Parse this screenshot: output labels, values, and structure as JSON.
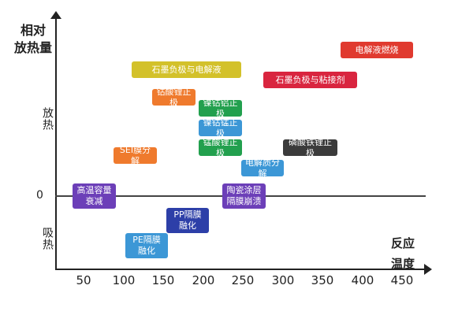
{
  "y_axis": {
    "title_line1": "相对",
    "title_line2": "放热量",
    "exo_label": "放热",
    "zero_label": "0",
    "endo_label": "吸热"
  },
  "x_axis": {
    "title_line1": "反应",
    "title_line2": "温度",
    "ticks": [
      "50",
      "100",
      "150",
      "200",
      "250",
      "300",
      "350",
      "400",
      "450"
    ]
  },
  "boxes": [
    {
      "key": "electrolyte-combustion",
      "line1": "电解液燃烧",
      "line2": "",
      "color": "#e03a2f"
    },
    {
      "key": "graphite-anode-electrolyte",
      "line1": "石墨负极与电解液",
      "line2": "",
      "color": "#d3c12a"
    },
    {
      "key": "graphite-anode-binder",
      "line1": "石墨负极与粘接剂",
      "line2": "",
      "color": "#d9253f"
    },
    {
      "key": "lco-cathode",
      "line1": "钴酸锂正极",
      "line2": "",
      "color": "#ef7a2d"
    },
    {
      "key": "nca-cathode",
      "line1": "镍钴铝正极",
      "line2": "",
      "color": "#22a04e"
    },
    {
      "key": "ncm-cathode",
      "line1": "镍钴锰正极",
      "line2": "",
      "color": "#3c97d6"
    },
    {
      "key": "lmo-cathode",
      "line1": "锰酸锂正极",
      "line2": "",
      "color": "#22a04e"
    },
    {
      "key": "lfp-cathode",
      "line1": "磷酸铁锂正极",
      "line2": "",
      "color": "#3b3b3b"
    },
    {
      "key": "sei-decomposition",
      "line1": "SEI膜分解",
      "line2": "",
      "color": "#ef7a2d"
    },
    {
      "key": "electrolyte-decomposition",
      "line1": "电解质分解",
      "line2": "",
      "color": "#3c97d6"
    },
    {
      "key": "high-temp-capacity",
      "line1": "高温容量",
      "line2": "衰减",
      "color": "#6c3fb8"
    },
    {
      "key": "ceramic-separator",
      "line1": "陶瓷涂层",
      "line2": "隔膜崩溃",
      "color": "#6c3fb8"
    },
    {
      "key": "pp-separator",
      "line1": "PP隔膜",
      "line2": "融化",
      "color": "#2d3fa8"
    },
    {
      "key": "pe-separator",
      "line1": "PE隔膜",
      "line2": "融化",
      "color": "#3c97d6"
    }
  ]
}
